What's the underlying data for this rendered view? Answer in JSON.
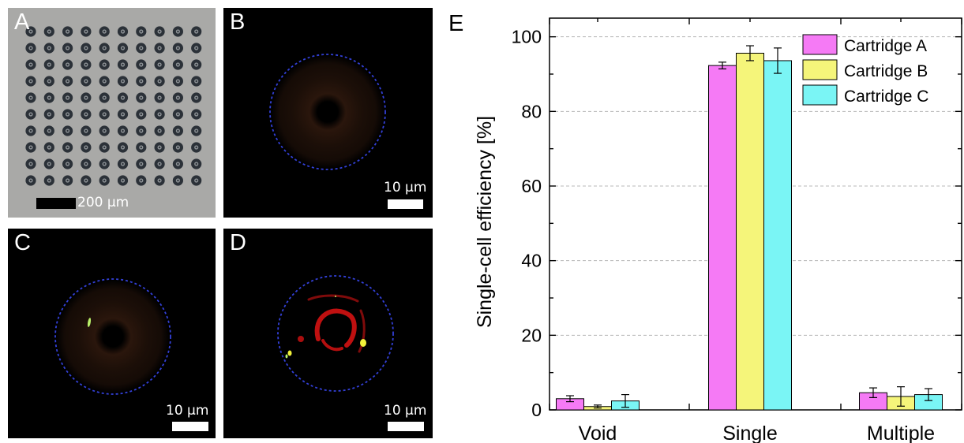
{
  "panels": {
    "a": {
      "letter": "A",
      "scale_label": "200 μm",
      "grid_rows": 10,
      "grid_cols": 10
    },
    "b": {
      "letter": "B",
      "scale_label": "10 μm"
    },
    "c": {
      "letter": "C",
      "scale_label": "10 μm"
    },
    "d": {
      "letter": "D",
      "scale_label": "10 μm"
    },
    "e": {
      "letter": "E"
    }
  },
  "colors": {
    "circle_dash": "#3340d8",
    "cell_green": "#b9f06a",
    "cell_red": "#d41212",
    "cell_yellow": "#f2f23a"
  },
  "chart_data": {
    "type": "bar",
    "categories": [
      "Void",
      "Single",
      "Multiple"
    ],
    "ylabel": "Single-cell efficiency [%]",
    "xlabel": "",
    "ylim": [
      0,
      105
    ],
    "yticks": [
      0,
      20,
      40,
      60,
      80,
      100
    ],
    "grid": "horizontal-dashed",
    "legend": "top-right",
    "series": [
      {
        "name": "Cartridge A",
        "color": "#f57af5",
        "values": [
          3.0,
          92.3,
          4.6
        ],
        "errors": [
          0.8,
          0.9,
          1.3
        ]
      },
      {
        "name": "Cartridge B",
        "color": "#f5f57a",
        "values": [
          0.9,
          95.6,
          3.6
        ],
        "errors": [
          0.4,
          2.0,
          2.6
        ]
      },
      {
        "name": "Cartridge C",
        "color": "#7af5f5",
        "values": [
          2.4,
          93.6,
          4.1
        ],
        "errors": [
          1.7,
          3.4,
          1.6
        ]
      }
    ]
  }
}
